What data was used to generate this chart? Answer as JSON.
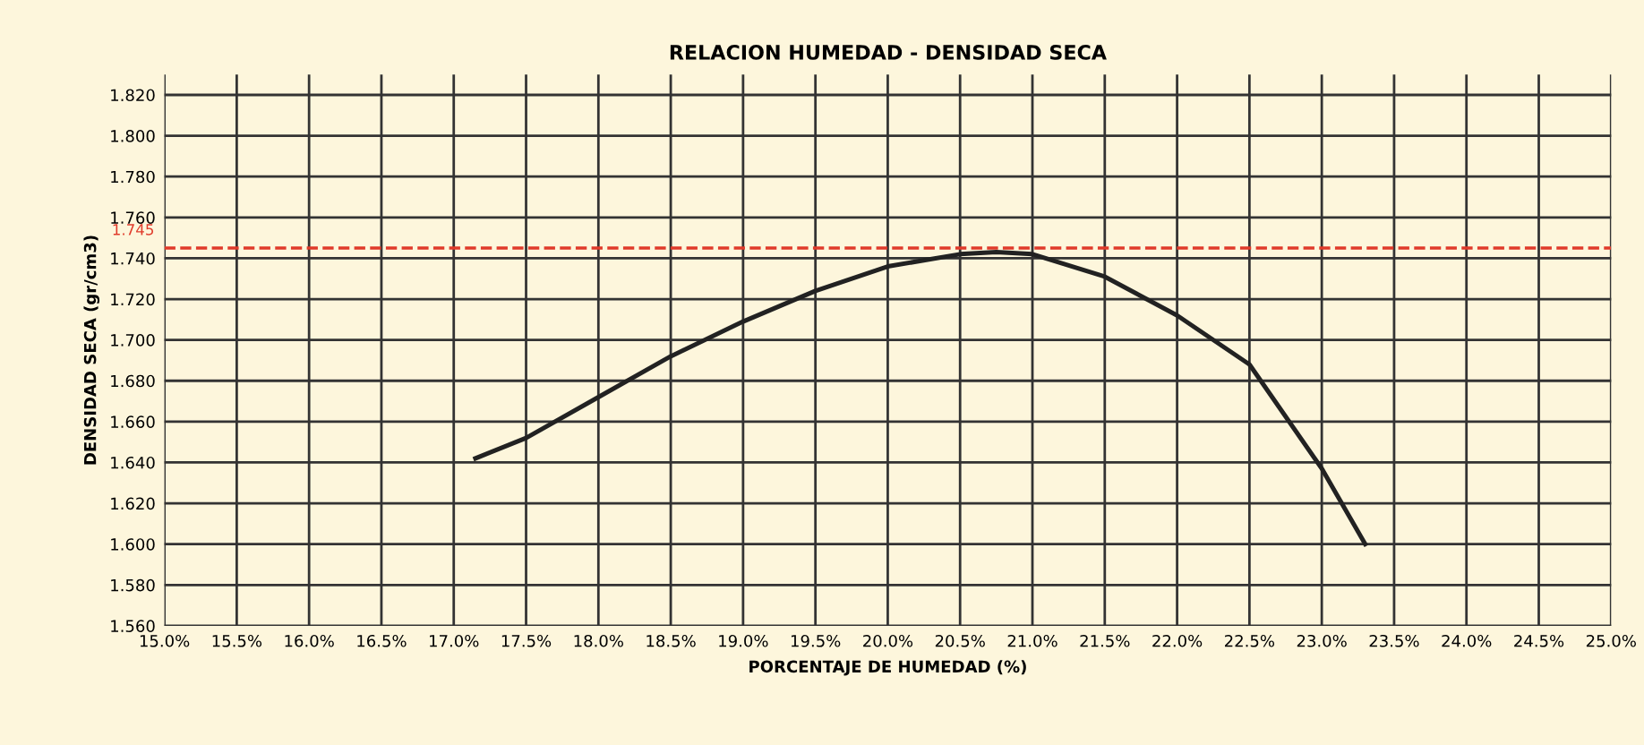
{
  "chart_data": {
    "type": "line",
    "title": "RELACION HUMEDAD - DENSIDAD SECA",
    "xlabel": "PORCENTAJE DE HUMEDAD (%)",
    "ylabel": "DENSIDAD SECA (gr/cm3)",
    "x": [
      17.15,
      17.5,
      18.0,
      18.5,
      19.0,
      19.5,
      20.0,
      20.5,
      20.75,
      21.0,
      21.5,
      22.0,
      22.5,
      23.0,
      23.3
    ],
    "series": [
      {
        "color": "#222222",
        "values": [
          1.642,
          1.652,
          1.672,
          1.692,
          1.709,
          1.724,
          1.736,
          1.742,
          1.743,
          1.742,
          1.731,
          1.712,
          1.688,
          1.637,
          1.6
        ]
      }
    ],
    "xlim": [
      15.0,
      25.0
    ],
    "ylim": [
      1.56,
      1.83
    ],
    "xticks": [
      {
        "value": 15.0,
        "label": "15.0%"
      },
      {
        "value": 15.5,
        "label": "15.5%"
      },
      {
        "value": 16.0,
        "label": "16.0%"
      },
      {
        "value": 16.5,
        "label": "16.5%"
      },
      {
        "value": 17.0,
        "label": "17.0%"
      },
      {
        "value": 17.5,
        "label": "17.5%"
      },
      {
        "value": 18.0,
        "label": "18.0%"
      },
      {
        "value": 18.5,
        "label": "18.5%"
      },
      {
        "value": 19.0,
        "label": "19.0%"
      },
      {
        "value": 19.5,
        "label": "19.5%"
      },
      {
        "value": 20.0,
        "label": "20.0%"
      },
      {
        "value": 20.5,
        "label": "20.5%"
      },
      {
        "value": 21.0,
        "label": "21.0%"
      },
      {
        "value": 21.5,
        "label": "21.5%"
      },
      {
        "value": 22.0,
        "label": "22.0%"
      },
      {
        "value": 22.5,
        "label": "22.5%"
      },
      {
        "value": 23.0,
        "label": "23.0%"
      },
      {
        "value": 23.5,
        "label": "23.5%"
      },
      {
        "value": 24.0,
        "label": "24.0%"
      },
      {
        "value": 24.5,
        "label": "24.5%"
      },
      {
        "value": 25.0,
        "label": "25.0%"
      }
    ],
    "yticks": [
      {
        "value": 1.56,
        "label": "1.560"
      },
      {
        "value": 1.58,
        "label": "1.580"
      },
      {
        "value": 1.6,
        "label": "1.600"
      },
      {
        "value": 1.62,
        "label": "1.620"
      },
      {
        "value": 1.64,
        "label": "1.640"
      },
      {
        "value": 1.66,
        "label": "1.660"
      },
      {
        "value": 1.68,
        "label": "1.680"
      },
      {
        "value": 1.7,
        "label": "1.700"
      },
      {
        "value": 1.72,
        "label": "1.720"
      },
      {
        "value": 1.74,
        "label": "1.740"
      },
      {
        "value": 1.76,
        "label": "1.760"
      },
      {
        "value": 1.78,
        "label": "1.780"
      },
      {
        "value": 1.8,
        "label": "1.800"
      },
      {
        "value": 1.82,
        "label": "1.820"
      }
    ],
    "ref_lines": [
      {
        "axis": "y",
        "value": 1.745,
        "label": "1.745",
        "color": "#e03a2a",
        "line_style": "dashed"
      }
    ],
    "grid": true,
    "marker": "none",
    "line_style": "solid",
    "legend": false
  }
}
